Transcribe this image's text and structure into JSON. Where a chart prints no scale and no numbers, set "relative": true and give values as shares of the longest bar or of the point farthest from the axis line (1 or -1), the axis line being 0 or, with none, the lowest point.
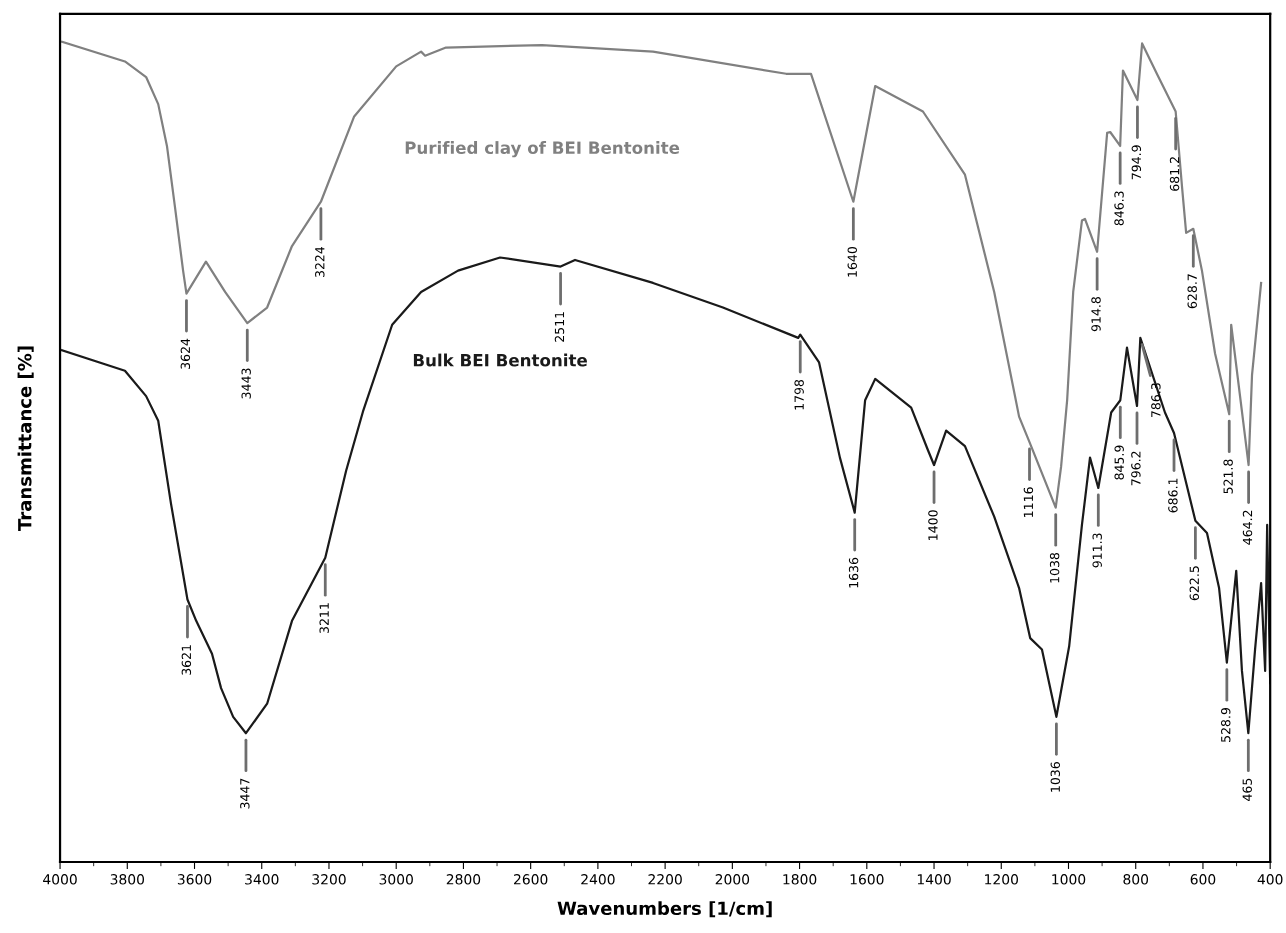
{
  "chart_data": {
    "type": "line",
    "xlabel": "Wavenumbers [1/cm]",
    "ylabel": "Transmittance [%]",
    "relative": true,
    "grid": false,
    "legend": false,
    "marker": "none",
    "line_style": "solid",
    "xlim": [
      4000,
      400
    ],
    "xticks": [
      4000,
      3800,
      3600,
      3400,
      3200,
      3000,
      2800,
      2600,
      2400,
      2200,
      2000,
      1800,
      1600,
      1400,
      1200,
      1000,
      800,
      600,
      400,
      {
        "value": 3900,
        "label": null
      },
      {
        "value": 3700,
        "label": null
      },
      {
        "value": 3500,
        "label": null
      },
      {
        "value": 3300,
        "label": null
      },
      {
        "value": 3100,
        "label": null
      },
      {
        "value": 2900,
        "label": null
      },
      {
        "value": 2700,
        "label": null
      },
      {
        "value": 2500,
        "label": null
      },
      {
        "value": 2300,
        "label": null
      },
      {
        "value": 2100,
        "label": null
      },
      {
        "value": 1900,
        "label": null
      },
      {
        "value": 1700,
        "label": null
      },
      {
        "value": 1500,
        "label": null
      },
      {
        "value": 1300,
        "label": null
      },
      {
        "value": 1100,
        "label": null
      },
      {
        "value": 900,
        "label": null
      },
      {
        "value": 700,
        "label": null
      },
      {
        "value": 500,
        "label": null
      }
    ],
    "series": [
      {
        "name": "Purified clay of BEI Bentonite",
        "color": "#808080",
        "x": [
          3994,
          3807,
          3744,
          3708,
          3682,
          3658,
          3634,
          3624,
          3566,
          3509,
          3443,
          3384,
          3310,
          3224,
          3125,
          3000,
          2926,
          2914,
          2852,
          2566,
          2236,
          1840,
          1766,
          1640,
          1575,
          1433,
          1308,
          1221,
          1147,
          1116,
          1038,
          1022,
          1004,
          986,
          960,
          951,
          914.8,
          885,
          876,
          846.3,
          838,
          794.9,
          781,
          736,
          681.2,
          662,
          650,
          628.7,
          603,
          564,
          521.8,
          516,
          464.2,
          454,
          427
        ],
        "values": [
          1.0,
          0.976,
          0.957,
          0.924,
          0.873,
          0.798,
          0.721,
          0.693,
          0.732,
          0.695,
          0.657,
          0.676,
          0.751,
          0.805,
          0.909,
          0.97,
          0.988,
          0.983,
          0.993,
          0.996,
          0.988,
          0.961,
          0.961,
          0.805,
          0.946,
          0.915,
          0.838,
          0.695,
          0.543,
          0.512,
          0.432,
          0.482,
          0.563,
          0.695,
          0.782,
          0.784,
          0.744,
          0.889,
          0.89,
          0.873,
          0.965,
          0.929,
          0.998,
          0.96,
          0.915,
          0.822,
          0.767,
          0.772,
          0.721,
          0.62,
          0.546,
          0.655,
          0.484,
          0.594,
          0.706
        ]
      },
      {
        "name": "Bulk BEI Bentonite",
        "color": "#1a1a1a",
        "x": [
          3994,
          3807,
          3744,
          3708,
          3670,
          3621,
          3595,
          3548,
          3521,
          3485,
          3447,
          3384,
          3310,
          3211,
          3149,
          3099,
          3012,
          2926,
          2816,
          2691,
          2511,
          2468,
          2236,
          2028,
          1804,
          1798,
          1742,
          1680,
          1636,
          1605,
          1575,
          1468,
          1418,
          1400,
          1364,
          1308,
          1221,
          1147,
          1114,
          1079,
          1036,
          998,
          960,
          936,
          911.3,
          873,
          845.9,
          826,
          796.2,
          786.3,
          713,
          686.1,
          622.5,
          588,
          552,
          528.9,
          501,
          484,
          465,
          445,
          427,
          415,
          409,
          400
        ],
        "values": [
          0.624,
          0.599,
          0.568,
          0.538,
          0.437,
          0.32,
          0.294,
          0.254,
          0.212,
          0.177,
          0.157,
          0.193,
          0.294,
          0.371,
          0.477,
          0.549,
          0.655,
          0.695,
          0.721,
          0.737,
          0.726,
          0.734,
          0.706,
          0.676,
          0.639,
          0.643,
          0.609,
          0.493,
          0.426,
          0.563,
          0.589,
          0.554,
          0.502,
          0.484,
          0.526,
          0.507,
          0.421,
          0.334,
          0.273,
          0.259,
          0.177,
          0.263,
          0.411,
          0.493,
          0.456,
          0.548,
          0.563,
          0.627,
          0.556,
          0.639,
          0.548,
          0.523,
          0.416,
          0.401,
          0.334,
          0.243,
          0.355,
          0.233,
          0.157,
          0.259,
          0.34,
          0.233,
          0.411,
          0.218
        ]
      }
    ],
    "annotations": [
      {
        "text": "3624",
        "x": 3624,
        "y": 0.693
      },
      {
        "text": "3443",
        "x": 3443,
        "y": 0.657
      },
      {
        "text": "3224",
        "x": 3224,
        "y": 0.805
      },
      {
        "text": "1640",
        "x": 1640,
        "y": 0.805
      },
      {
        "text": "1116",
        "x": 1116,
        "y": 0.512
      },
      {
        "text": "1038",
        "x": 1038,
        "y": 0.432
      },
      {
        "text": "914.8",
        "x": 914.8,
        "y": 0.744
      },
      {
        "text": "846.3",
        "x": 846.3,
        "y": 0.873
      },
      {
        "text": "794.9",
        "x": 794.9,
        "y": 0.929
      },
      {
        "text": "681.2",
        "x": 681.2,
        "y": 0.915
      },
      {
        "text": "628.7",
        "x": 628.7,
        "y": 0.772
      },
      {
        "text": "521.8",
        "x": 521.8,
        "y": 0.546
      },
      {
        "text": "464.2",
        "x": 464.2,
        "y": 0.484
      },
      {
        "text": "2511",
        "x": 2511,
        "y": 0.726
      },
      {
        "text": "1798",
        "x": 1798,
        "y": 0.643
      },
      {
        "text": "1636",
        "x": 1636,
        "y": 0.426
      },
      {
        "text": "1400",
        "x": 1400,
        "y": 0.484
      },
      {
        "text": "3621",
        "x": 3621,
        "y": 0.32
      },
      {
        "text": "3447",
        "x": 3447,
        "y": 0.157
      },
      {
        "text": "3211",
        "x": 3211,
        "y": 0.371
      },
      {
        "text": "1036",
        "x": 1036,
        "y": 0.177
      },
      {
        "text": "911.3",
        "x": 911.3,
        "y": 0.456
      },
      {
        "text": "845.9",
        "x": 845.9,
        "y": 0.563
      },
      {
        "text": "796.2",
        "x": 796.2,
        "y": 0.556
      },
      {
        "text": "786.3",
        "x": 786.3,
        "y": 0.639
      },
      {
        "text": "686.1",
        "x": 686.1,
        "y": 0.523
      },
      {
        "text": "622.5",
        "x": 622.5,
        "y": 0.416
      },
      {
        "text": "528.9",
        "x": 528.9,
        "y": 0.243
      },
      {
        "text": "465",
        "x": 465,
        "y": 0.157
      }
    ]
  }
}
